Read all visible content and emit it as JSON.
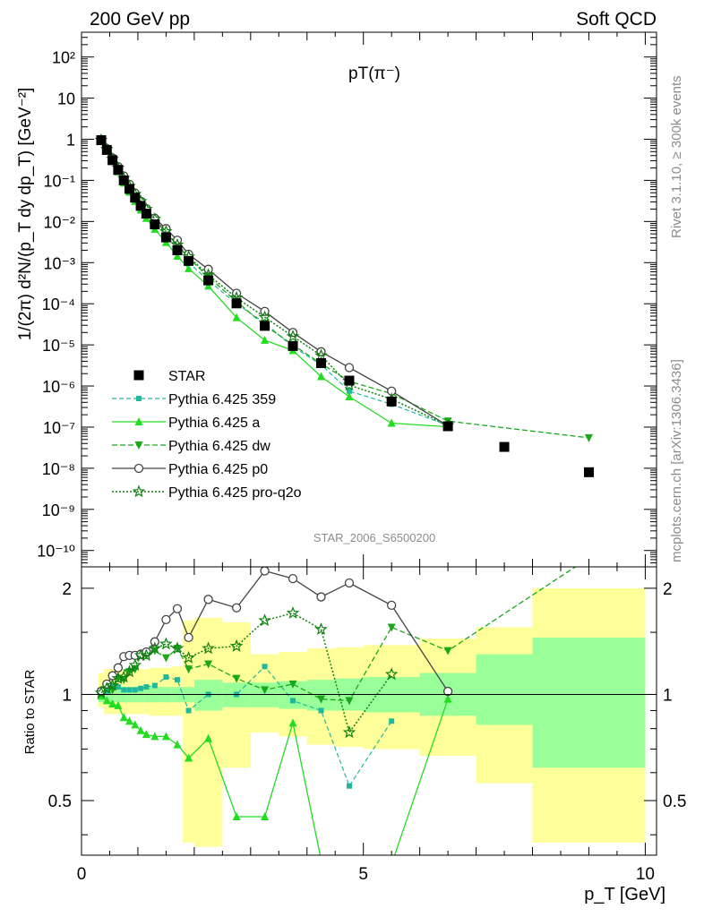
{
  "header": {
    "left": "200 GeV pp",
    "right": "Soft QCD"
  },
  "side_labels": {
    "rivet": "Rivet 3.1.10, ≥ 300k events",
    "mcplots": "mcplots.cern.ch [arXiv:1306.3436]"
  },
  "watermark": "STAR_2006_S6500200",
  "colors": {
    "star": "#000000",
    "p359": "#20b89a",
    "a": "#22dd22",
    "dw": "#1aa81a",
    "p0": "#444444",
    "proq2o": "#108010",
    "band_yellow": "#ffff99",
    "band_green": "#99ff99"
  },
  "chart_data": [
    {
      "type": "scatter",
      "title": "pT(π⁻)",
      "ylabel": "1/(2π) d²N/(p_T dy dp_T) [GeV⁻²]",
      "xlabel": "p_T [GeV]",
      "xlim": [
        0,
        10.2
      ],
      "ylim": [
        4e-11,
        400
      ],
      "yscale": "log",
      "yticks": [
        "10⁻¹⁰",
        "10⁻⁹",
        "10⁻⁸",
        "10⁻⁷",
        "10⁻⁶",
        "10⁻⁵",
        "10⁻⁴",
        "10⁻³",
        "10⁻²",
        "10⁻¹",
        "1",
        "10",
        "10²"
      ],
      "legend_position": "bottom-left",
      "series": [
        {
          "name": "STAR",
          "key": "star",
          "x": [
            0.35,
            0.45,
            0.55,
            0.65,
            0.75,
            0.85,
            0.95,
            1.05,
            1.15,
            1.3,
            1.5,
            1.7,
            1.9,
            2.25,
            2.75,
            3.25,
            3.75,
            4.25,
            4.75,
            5.5,
            6.5,
            7.5,
            9.0
          ],
          "y": [
            0.95,
            0.55,
            0.31,
            0.18,
            0.1,
            0.062,
            0.038,
            0.024,
            0.0155,
            0.0085,
            0.0041,
            0.002,
            0.0011,
            0.00037,
            0.000102,
            2.9e-05,
            9.4e-06,
            3.6e-06,
            1.35e-06,
            4.2e-07,
            1.05e-07,
            3.3e-08,
            8e-09
          ]
        },
        {
          "name": "Pythia 6.425 359",
          "key": "p359",
          "x": [
            0.35,
            0.45,
            0.55,
            0.65,
            0.75,
            0.85,
            0.95,
            1.05,
            1.15,
            1.3,
            1.5,
            1.7,
            1.9,
            2.25,
            2.75,
            3.25,
            3.75,
            4.25,
            4.75,
            5.5,
            6.5
          ],
          "y": [
            0.95,
            0.56,
            0.33,
            0.19,
            0.103,
            0.064,
            0.039,
            0.025,
            0.0163,
            0.009,
            0.0046,
            0.0022,
            0.001,
            0.00037,
            0.0001,
            3.4e-05,
            9e-06,
            3.3e-06,
            7.5e-07,
            3.6e-07,
            1.1e-07
          ]
        },
        {
          "name": "Pythia 6.425 a",
          "key": "a",
          "x": [
            0.35,
            0.45,
            0.55,
            0.65,
            0.75,
            0.85,
            0.95,
            1.05,
            1.15,
            1.3,
            1.5,
            1.7,
            1.9,
            2.25,
            2.75,
            3.25,
            3.75,
            4.25,
            4.75,
            5.5,
            6.5
          ],
          "y": [
            0.94,
            0.53,
            0.29,
            0.162,
            0.086,
            0.052,
            0.031,
            0.019,
            0.012,
            0.0065,
            0.0031,
            0.00144,
            0.00072,
            0.00027,
            4.6e-05,
            1.3e-05,
            7.3e-06,
            1.7e-06,
            5.5e-07,
            1.25e-07,
            1.02e-07
          ]
        },
        {
          "name": "Pythia 6.425 dw",
          "key": "dw",
          "x": [
            0.35,
            0.45,
            0.55,
            0.65,
            0.75,
            0.85,
            0.95,
            1.05,
            1.15,
            1.3,
            1.5,
            1.7,
            1.9,
            2.25,
            2.75,
            3.25,
            3.75,
            4.25,
            4.75,
            5.5,
            6.5,
            9.0
          ],
          "y": [
            0.97,
            0.58,
            0.32,
            0.2,
            0.11,
            0.072,
            0.045,
            0.031,
            0.02,
            0.0113,
            0.0052,
            0.0027,
            0.0013,
            0.00045,
            0.000113,
            3e-05,
            1e-05,
            3.5e-06,
            1.3e-06,
            6.5e-07,
            1.4e-07,
            5.5e-08
          ]
        },
        {
          "name": "Pythia 6.425 p0",
          "key": "p0",
          "x": [
            0.35,
            0.45,
            0.55,
            0.65,
            0.75,
            0.85,
            0.95,
            1.05,
            1.15,
            1.3,
            1.5,
            1.7,
            1.9,
            2.25,
            2.75,
            3.25,
            3.75,
            4.25,
            4.75,
            5.5,
            6.5
          ],
          "y": [
            0.97,
            0.59,
            0.35,
            0.215,
            0.128,
            0.08,
            0.049,
            0.031,
            0.0205,
            0.012,
            0.0067,
            0.0035,
            0.0016,
            0.00069,
            0.00018,
            6.5e-05,
            2e-05,
            6.8e-06,
            2.8e-06,
            7.5e-07,
            1.07e-07
          ]
        },
        {
          "name": "Pythia 6.425 pro-q2o",
          "key": "proq2o",
          "x": [
            0.35,
            0.45,
            0.55,
            0.65,
            0.75,
            0.85,
            0.95,
            1.05,
            1.15,
            1.3,
            1.5,
            1.7,
            1.9,
            2.25,
            2.75,
            3.25,
            3.75,
            4.25,
            4.75,
            5.5,
            6.5
          ],
          "y": [
            0.96,
            0.57,
            0.33,
            0.2,
            0.112,
            0.072,
            0.046,
            0.031,
            0.02,
            0.0115,
            0.0057,
            0.0027,
            0.0014,
            0.0005,
            0.00014,
            4.7e-05,
            1.6e-05,
            5.5e-06,
            1.05e-06,
            4.8e-07,
            1.1e-07
          ]
        }
      ]
    },
    {
      "type": "line",
      "ylabel": "Ratio to STAR",
      "xlabel": "p_T [GeV]",
      "xlim": [
        0,
        10.2
      ],
      "ylim": [
        0.35,
        2.3
      ],
      "yscale": "log",
      "reference_line": 1,
      "band_edges": [
        0.3,
        0.4,
        0.5,
        0.6,
        0.7,
        0.8,
        0.9,
        1.0,
        1.1,
        1.2,
        1.4,
        1.6,
        1.8,
        2.0,
        2.5,
        3.0,
        3.5,
        4.0,
        4.5,
        5.0,
        6.0,
        7.0,
        8.0,
        10.0
      ],
      "band_stat": [
        [
          0.95,
          1.05
        ],
        [
          0.95,
          1.05
        ],
        [
          0.95,
          1.05
        ],
        [
          0.95,
          1.05
        ],
        [
          0.95,
          1.05
        ],
        [
          0.95,
          1.05
        ],
        [
          0.95,
          1.05
        ],
        [
          0.95,
          1.05
        ],
        [
          0.95,
          1.05
        ],
        [
          0.95,
          1.05
        ],
        [
          0.95,
          1.05
        ],
        [
          0.95,
          1.05
        ],
        [
          0.95,
          1.05
        ],
        [
          0.9,
          1.1
        ],
        [
          0.92,
          1.08
        ],
        [
          0.92,
          1.08
        ],
        [
          0.91,
          1.09
        ],
        [
          0.9,
          1.1
        ],
        [
          0.9,
          1.11
        ],
        [
          0.89,
          1.12
        ],
        [
          0.87,
          1.15
        ],
        [
          0.82,
          1.3
        ],
        [
          0.62,
          1.45
        ],
        [
          0.4,
          1.65
        ]
      ],
      "band_total": [
        [
          0.92,
          1.15
        ],
        [
          0.88,
          1.18
        ],
        [
          0.88,
          1.18
        ],
        [
          0.88,
          1.18
        ],
        [
          0.88,
          1.18
        ],
        [
          0.88,
          1.18
        ],
        [
          0.88,
          1.18
        ],
        [
          0.88,
          1.18
        ],
        [
          0.88,
          1.18
        ],
        [
          0.87,
          1.19
        ],
        [
          0.87,
          1.19
        ],
        [
          0.87,
          1.2
        ],
        [
          0.38,
          1.62
        ],
        [
          0.37,
          1.65
        ],
        [
          0.62,
          1.6
        ],
        [
          0.78,
          1.3
        ],
        [
          0.76,
          1.32
        ],
        [
          0.72,
          1.35
        ],
        [
          0.71,
          1.36
        ],
        [
          0.7,
          1.38
        ],
        [
          0.67,
          1.44
        ],
        [
          0.56,
          1.55
        ],
        [
          0.38,
          2.0
        ],
        [
          0.38,
          2.15
        ]
      ],
      "series": [
        {
          "name": "Pythia 6.425 359",
          "key": "p359",
          "x": [
            0.35,
            0.45,
            0.55,
            0.65,
            0.75,
            0.85,
            0.95,
            1.05,
            1.15,
            1.3,
            1.5,
            1.7,
            1.9,
            2.25,
            2.75,
            3.25,
            3.75,
            4.25,
            4.75,
            5.5
          ],
          "y": [
            1.0,
            1.02,
            1.06,
            1.05,
            1.03,
            1.03,
            1.03,
            1.04,
            1.05,
            1.06,
            1.12,
            1.1,
            0.9,
            1.0,
            1.0,
            1.2,
            0.96,
            0.9,
            0.55,
            0.84
          ]
        },
        {
          "name": "Pythia 6.425 a",
          "key": "a",
          "x": [
            0.35,
            0.45,
            0.55,
            0.65,
            0.75,
            0.85,
            0.95,
            1.05,
            1.15,
            1.3,
            1.5,
            1.7,
            1.9,
            2.25,
            2.75,
            3.25,
            3.75,
            4.25,
            4.75,
            5.5,
            6.5
          ],
          "y": [
            0.99,
            0.96,
            0.94,
            0.93,
            0.86,
            0.84,
            0.82,
            0.79,
            0.77,
            0.76,
            0.76,
            0.72,
            0.66,
            0.75,
            0.45,
            0.45,
            0.83,
            0.34,
            0.34,
            0.3,
            0.97
          ]
        },
        {
          "name": "Pythia 6.425 dw",
          "key": "dw",
          "x": [
            0.35,
            0.45,
            0.55,
            0.65,
            0.75,
            0.85,
            0.95,
            1.05,
            1.15,
            1.3,
            1.5,
            1.7,
            1.9,
            2.25,
            2.75,
            3.25,
            3.75,
            4.25,
            4.75,
            5.5,
            6.5,
            9.0
          ],
          "y": [
            1.02,
            1.05,
            1.03,
            1.11,
            1.1,
            1.16,
            1.18,
            1.29,
            1.29,
            1.33,
            1.27,
            1.35,
            1.18,
            1.22,
            1.11,
            1.03,
            1.07,
            0.97,
            0.96,
            1.55,
            1.33,
            2.6
          ]
        },
        {
          "name": "Pythia 6.425 p0",
          "key": "p0",
          "x": [
            0.35,
            0.45,
            0.55,
            0.65,
            0.75,
            0.85,
            0.95,
            1.05,
            1.15,
            1.3,
            1.5,
            1.7,
            1.9,
            2.25,
            2.75,
            3.25,
            3.75,
            4.25,
            4.75,
            5.5,
            6.5
          ],
          "y": [
            1.02,
            1.07,
            1.13,
            1.19,
            1.28,
            1.29,
            1.29,
            1.3,
            1.32,
            1.41,
            1.63,
            1.75,
            1.45,
            1.86,
            1.76,
            2.24,
            2.13,
            1.89,
            2.07,
            1.79,
            1.02
          ]
        },
        {
          "name": "Pythia 6.425 pro-q2o",
          "key": "proq2o",
          "x": [
            0.35,
            0.45,
            0.55,
            0.65,
            0.75,
            0.85,
            0.95,
            1.05,
            1.15,
            1.3,
            1.5,
            1.7,
            1.9,
            2.25,
            2.75,
            3.25,
            3.75,
            4.25,
            4.75,
            5.5
          ],
          "y": [
            1.01,
            1.04,
            1.06,
            1.11,
            1.12,
            1.16,
            1.21,
            1.29,
            1.29,
            1.35,
            1.39,
            1.35,
            1.27,
            1.35,
            1.37,
            1.62,
            1.7,
            1.53,
            0.78,
            1.14
          ]
        }
      ]
    }
  ]
}
